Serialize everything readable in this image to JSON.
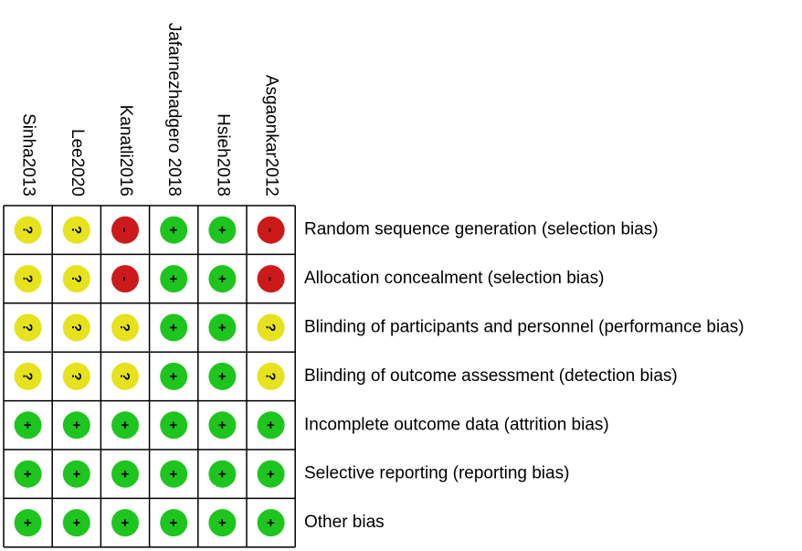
{
  "studies": [
    "Sinha2013",
    "Lee2020",
    "Kanatli2016",
    "Jafarnezhadgero 2018",
    "Hsieh2018",
    "Asgaonkar2012"
  ],
  "domains": [
    "Random sequence generation (selection bias)",
    "Allocation concealment (selection bias)",
    "Blinding of participants and personnel (performance bias)",
    "Blinding of outcome assessment (detection bias)",
    "Incomplete outcome data (attrition bias)",
    "Selective reporting (reporting bias)",
    "Other bias"
  ],
  "judgments": [
    [
      "?",
      "?",
      "-",
      "+",
      "+",
      "-"
    ],
    [
      "?",
      "?",
      "-",
      "+",
      "+",
      "-"
    ],
    [
      "?",
      "?",
      "?",
      "+",
      "+",
      "?"
    ],
    [
      "?",
      "?",
      "?",
      "+",
      "+",
      "?"
    ],
    [
      "+",
      "+",
      "+",
      "+",
      "+",
      "+"
    ],
    [
      "+",
      "+",
      "+",
      "+",
      "+",
      "+"
    ],
    [
      "+",
      "+",
      "+",
      "+",
      "+",
      "+"
    ]
  ],
  "colors": {
    "+": "#1ec51e",
    "?": "#e6e21e",
    "-": "#cc1a1a"
  }
}
